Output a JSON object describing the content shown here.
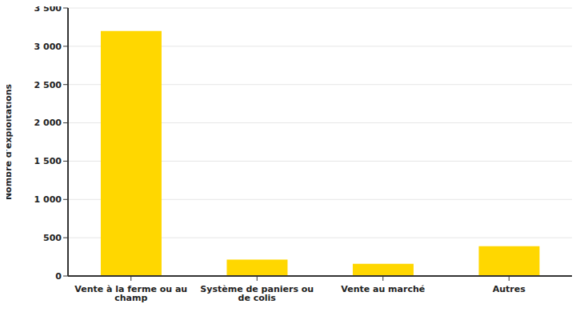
{
  "chart_data": {
    "type": "bar",
    "categories": [
      "Vente à la ferme ou au champ",
      "Système de paniers ou de colis",
      "Vente au marché",
      "Autres"
    ],
    "values": [
      3200,
      215,
      160,
      390
    ],
    "color": "#ffd700",
    "y_label": "Nombre d'exploitations",
    "ylim": [
      0,
      3500
    ],
    "yticks": [
      0,
      500,
      {
        "value": 1000,
        "label": "1 000"
      },
      {
        "value": 1500,
        "label": "1 500"
      },
      {
        "value": 2000,
        "label": "2 000"
      },
      {
        "value": 2500,
        "label": "2 500"
      },
      {
        "value": 3000,
        "label": "3 000"
      },
      {
        "value": 3500,
        "label": "3 500"
      }
    ],
    "grid": true
  }
}
